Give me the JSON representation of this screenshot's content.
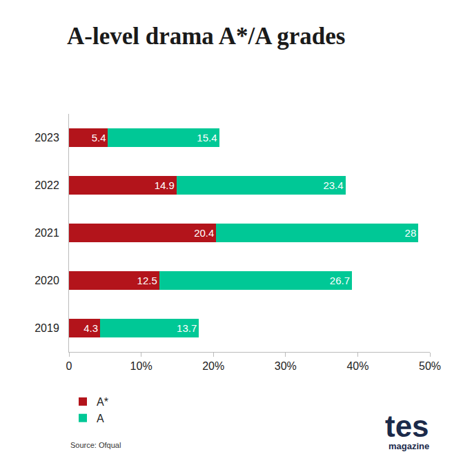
{
  "chart_data": {
    "type": "bar",
    "orientation": "horizontal",
    "stacked": true,
    "title": "A-level drama A*/A grades",
    "categories": [
      "2019",
      "2020",
      "2021",
      "2022",
      "2023"
    ],
    "series": [
      {
        "name": "A*",
        "color": "#b3141b",
        "values": [
          4.3,
          12.5,
          20.4,
          14.9,
          5.4
        ]
      },
      {
        "name": "A",
        "color": "#00c896",
        "values": [
          13.7,
          26.7,
          28,
          23.4,
          15.4
        ]
      }
    ],
    "xlim": [
      0,
      50
    ],
    "xticks": [
      0,
      {
        "value": 10,
        "label": "10%"
      },
      {
        "value": 20,
        "label": "20%"
      },
      {
        "value": 30,
        "label": "30%"
      },
      {
        "value": 40,
        "label": "40%"
      },
      {
        "value": 50,
        "label": "50%"
      }
    ],
    "data_labels": true,
    "grid": false,
    "legend": "bottom-left",
    "source": "Source: Ofqual",
    "logo": {
      "name": "tes",
      "subtitle": "magazine"
    }
  }
}
